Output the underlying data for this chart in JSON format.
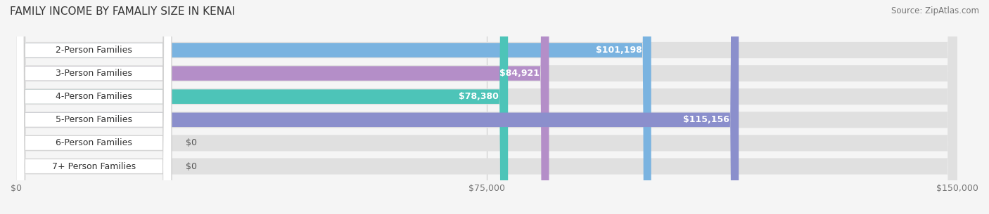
{
  "title": "FAMILY INCOME BY FAMALIY SIZE IN KENAI",
  "source": "Source: ZipAtlas.com",
  "categories": [
    "2-Person Families",
    "3-Person Families",
    "4-Person Families",
    "5-Person Families",
    "6-Person Families",
    "7+ Person Families"
  ],
  "values": [
    101198,
    84921,
    78380,
    115156,
    0,
    0
  ],
  "bar_colors": [
    "#7ab3e0",
    "#b48ec8",
    "#4dc4b8",
    "#8b8fcc",
    "#f5a0b0",
    "#f5c89a"
  ],
  "value_labels": [
    "$101,198",
    "$84,921",
    "$78,380",
    "$115,156",
    "$0",
    "$0"
  ],
  "xmax": 150000,
  "xticks": [
    0,
    75000,
    150000
  ],
  "xticklabels": [
    "$0",
    "$75,000",
    "$150,000"
  ],
  "bg_color": "#f5f5f5",
  "track_color": "#e0e0e0",
  "label_bg_color": "#ffffff",
  "title_fontsize": 11,
  "label_fontsize": 9,
  "value_fontsize": 9,
  "source_fontsize": 8.5
}
